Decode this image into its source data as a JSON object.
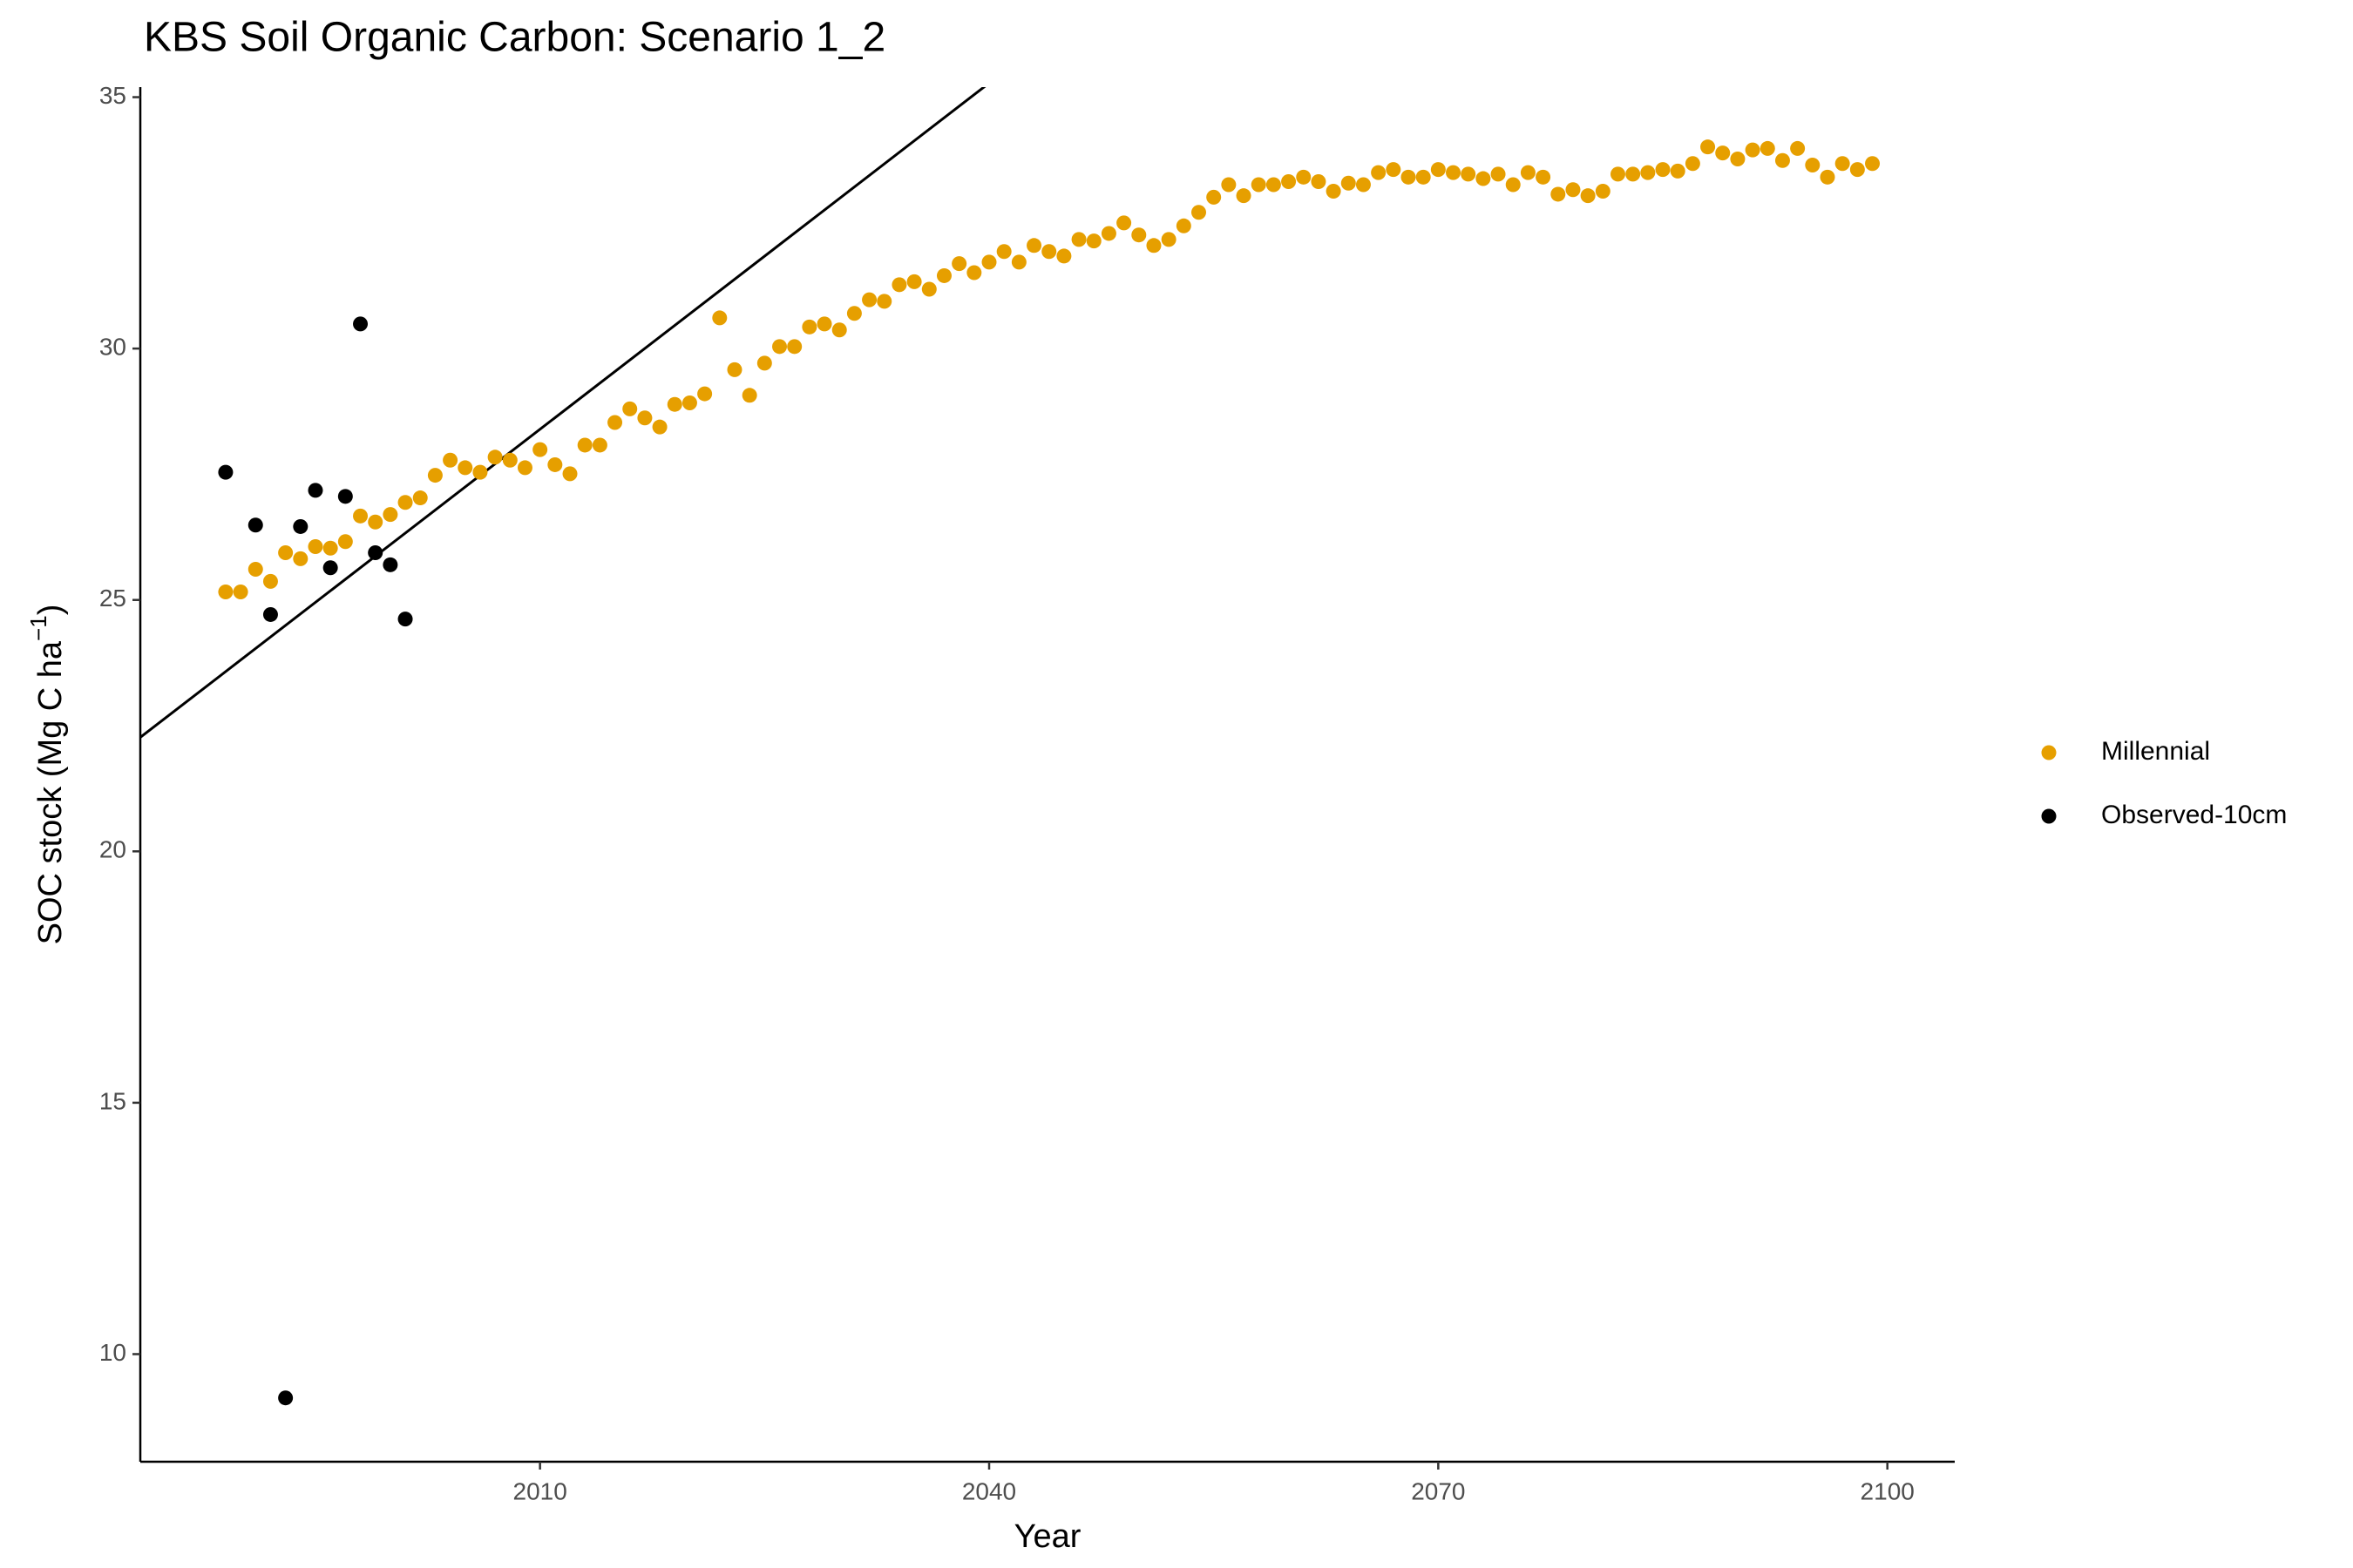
{
  "chart_data": {
    "type": "scatter",
    "title": "KBS Soil Organic Carbon: Scenario  1_2",
    "x_label": "Year",
    "y_label": {
      "text": "SOC stock (Mg C ha",
      "sup": "−1",
      "end": ")"
    },
    "xlim": [
      1983.3,
      2104.5
    ],
    "ylim": [
      7.86,
      35.2
    ],
    "xticks": [
      2010,
      2040,
      2070,
      2100
    ],
    "yticks": [
      10,
      15,
      20,
      25,
      30,
      35
    ],
    "legend": "right",
    "reference_line": {
      "slope": 0.2295,
      "intercept": -432.9,
      "color": "#000000"
    },
    "series": [
      {
        "name": "Millennial",
        "color": "#E69F00",
        "x": [
          1989,
          1990,
          1991,
          1992,
          1993,
          1994,
          1995,
          1996,
          1997,
          1998,
          1999,
          2000,
          2001,
          2002,
          2003,
          2004,
          2005,
          2006,
          2007,
          2008,
          2009,
          2010,
          2011,
          2012,
          2013,
          2014,
          2015,
          2016,
          2017,
          2018,
          2019,
          2020,
          2021,
          2022,
          2023,
          2024,
          2025,
          2026,
          2027,
          2028,
          2029,
          2030,
          2031,
          2032,
          2033,
          2034,
          2035,
          2036,
          2037,
          2038,
          2039,
          2040,
          2041,
          2042,
          2043,
          2044,
          2045,
          2046,
          2047,
          2048,
          2049,
          2050,
          2051,
          2052,
          2053,
          2054,
          2055,
          2056,
          2057,
          2058,
          2059,
          2060,
          2061,
          2062,
          2063,
          2064,
          2065,
          2066,
          2067,
          2068,
          2069,
          2070,
          2071,
          2072,
          2073,
          2074,
          2075,
          2076,
          2077,
          2078,
          2079,
          2080,
          2081,
          2082,
          2083,
          2084,
          2085,
          2086,
          2087,
          2088,
          2089,
          2090,
          2091,
          2092,
          2093,
          2094,
          2095,
          2096,
          2097,
          2098,
          2099
        ],
        "values": [
          25.16,
          25.16,
          25.61,
          25.37,
          25.94,
          25.82,
          26.06,
          26.03,
          26.16,
          26.67,
          26.55,
          26.7,
          26.94,
          27.03,
          27.48,
          27.78,
          27.63,
          27.54,
          27.84,
          27.78,
          27.63,
          27.99,
          27.69,
          27.51,
          28.08,
          28.08,
          28.53,
          28.8,
          28.62,
          28.44,
          28.89,
          28.92,
          29.1,
          30.61,
          29.58,
          29.07,
          29.71,
          30.04,
          30.04,
          30.43,
          30.49,
          30.37,
          30.7,
          30.97,
          30.94,
          31.27,
          31.33,
          31.18,
          31.45,
          31.69,
          31.51,
          31.72,
          31.93,
          31.72,
          32.05,
          31.93,
          31.84,
          32.17,
          32.14,
          32.29,
          32.5,
          32.26,
          32.05,
          32.17,
          32.44,
          32.71,
          33.01,
          33.26,
          33.04,
          33.26,
          33.26,
          33.32,
          33.41,
          33.32,
          33.13,
          33.29,
          33.26,
          33.5,
          33.56,
          33.41,
          33.41,
          33.56,
          33.5,
          33.47,
          33.38,
          33.47,
          33.26,
          33.5,
          33.41,
          33.07,
          33.16,
          33.04,
          33.13,
          33.47,
          33.47,
          33.5,
          33.56,
          33.53,
          33.68,
          34.01,
          33.89,
          33.77,
          33.95,
          33.98,
          33.74,
          33.98,
          33.65,
          33.41,
          33.68,
          33.56,
          33.68
        ]
      },
      {
        "name": "Observed-10cm",
        "color": "#000000",
        "x": [
          1989,
          1991,
          1992,
          1993,
          1994,
          1995,
          1996,
          1997,
          1998,
          1999,
          2000,
          2001
        ],
        "values": [
          27.54,
          26.49,
          24.71,
          9.13,
          26.46,
          27.18,
          25.64,
          27.06,
          30.49,
          25.94,
          25.7,
          24.62
        ]
      }
    ]
  }
}
